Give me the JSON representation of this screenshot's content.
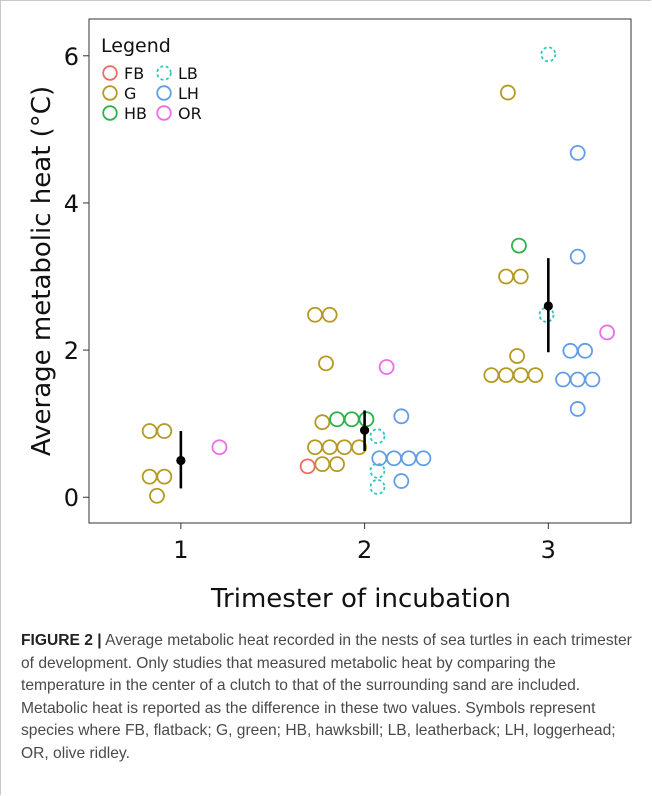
{
  "chart_data": {
    "type": "scatter",
    "xlabel": "Trimester of incubation",
    "ylabel": "Average metabolic heat (°C)",
    "x_ticks": [
      "1",
      "2",
      "3"
    ],
    "y_ticks": [
      "0",
      "2",
      "4",
      "6"
    ],
    "xlim": [
      0.5,
      3.45
    ],
    "ylim": [
      -0.35,
      6.5
    ],
    "grid": false,
    "legend": {
      "title": "Legend",
      "placement": "top-left",
      "entries": [
        {
          "code": "FB",
          "color": "#ef6b63",
          "dashed": false
        },
        {
          "code": "LB",
          "color": "#33c4c4",
          "dashed": true
        },
        {
          "code": "G",
          "color": "#b49a22",
          "dashed": false
        },
        {
          "code": "LH",
          "color": "#629ee8",
          "dashed": false
        },
        {
          "code": "HB",
          "color": "#2bb24a",
          "dashed": false
        },
        {
          "code": "OR",
          "color": "#ee6ee6",
          "dashed": false
        }
      ]
    },
    "series": [
      {
        "code": "G",
        "points": [
          [
            0.83,
            0.9
          ],
          [
            0.91,
            0.9
          ],
          [
            0.83,
            0.28
          ],
          [
            0.91,
            0.28
          ],
          [
            0.87,
            0.02
          ],
          [
            1.73,
            2.48
          ],
          [
            1.81,
            2.48
          ],
          [
            1.79,
            1.82
          ],
          [
            1.77,
            1.02
          ],
          [
            1.73,
            0.68
          ],
          [
            1.81,
            0.68
          ],
          [
            1.89,
            0.68
          ],
          [
            1.97,
            0.68
          ],
          [
            1.77,
            0.45
          ],
          [
            1.85,
            0.45
          ],
          [
            2.78,
            5.5
          ],
          [
            2.77,
            3.0
          ],
          [
            2.85,
            3.0
          ],
          [
            2.83,
            1.92
          ],
          [
            2.69,
            1.66
          ],
          [
            2.77,
            1.66
          ],
          [
            2.85,
            1.66
          ],
          [
            2.93,
            1.66
          ]
        ]
      },
      {
        "code": "FB",
        "points": [
          [
            1.69,
            0.42
          ]
        ]
      },
      {
        "code": "HB",
        "points": [
          [
            1.85,
            1.06
          ],
          [
            1.93,
            1.06
          ],
          [
            2.01,
            1.06
          ],
          [
            2.84,
            3.42
          ]
        ]
      },
      {
        "code": "LB",
        "points": [
          [
            2.07,
            0.83
          ],
          [
            2.07,
            0.36
          ],
          [
            2.07,
            0.14
          ],
          [
            3.0,
            6.02
          ],
          [
            2.99,
            2.48
          ]
        ]
      },
      {
        "code": "LH",
        "points": [
          [
            2.2,
            1.1
          ],
          [
            2.08,
            0.53
          ],
          [
            2.16,
            0.53
          ],
          [
            2.24,
            0.53
          ],
          [
            2.32,
            0.53
          ],
          [
            2.2,
            0.22
          ],
          [
            3.16,
            4.68
          ],
          [
            3.16,
            3.27
          ],
          [
            3.12,
            1.99
          ],
          [
            3.2,
            1.99
          ],
          [
            3.08,
            1.6
          ],
          [
            3.16,
            1.6
          ],
          [
            3.24,
            1.6
          ],
          [
            3.16,
            1.2
          ]
        ]
      },
      {
        "code": "OR",
        "points": [
          [
            1.21,
            0.68
          ],
          [
            2.12,
            1.77
          ],
          [
            3.32,
            2.24
          ]
        ]
      }
    ],
    "summary": [
      {
        "x": 1,
        "mean": 0.5,
        "low": 0.12,
        "high": 0.9
      },
      {
        "x": 2,
        "mean": 0.91,
        "low": 0.63,
        "high": 1.18
      },
      {
        "x": 3,
        "mean": 2.6,
        "low": 1.97,
        "high": 3.25
      }
    ]
  },
  "caption": {
    "label": "FIGURE 2 |",
    "text": " Average metabolic heat recorded in the nests of sea turtles in each trimester of development. Only studies that measured metabolic heat by comparing the temperature in the center of a clutch to that of the surrounding sand are included. Metabolic heat is reported as the difference in these two values. Symbols represent species where FB, flatback; G, green; HB, hawksbill; LB, leatherback; LH, loggerhead; OR, olive ridley."
  }
}
